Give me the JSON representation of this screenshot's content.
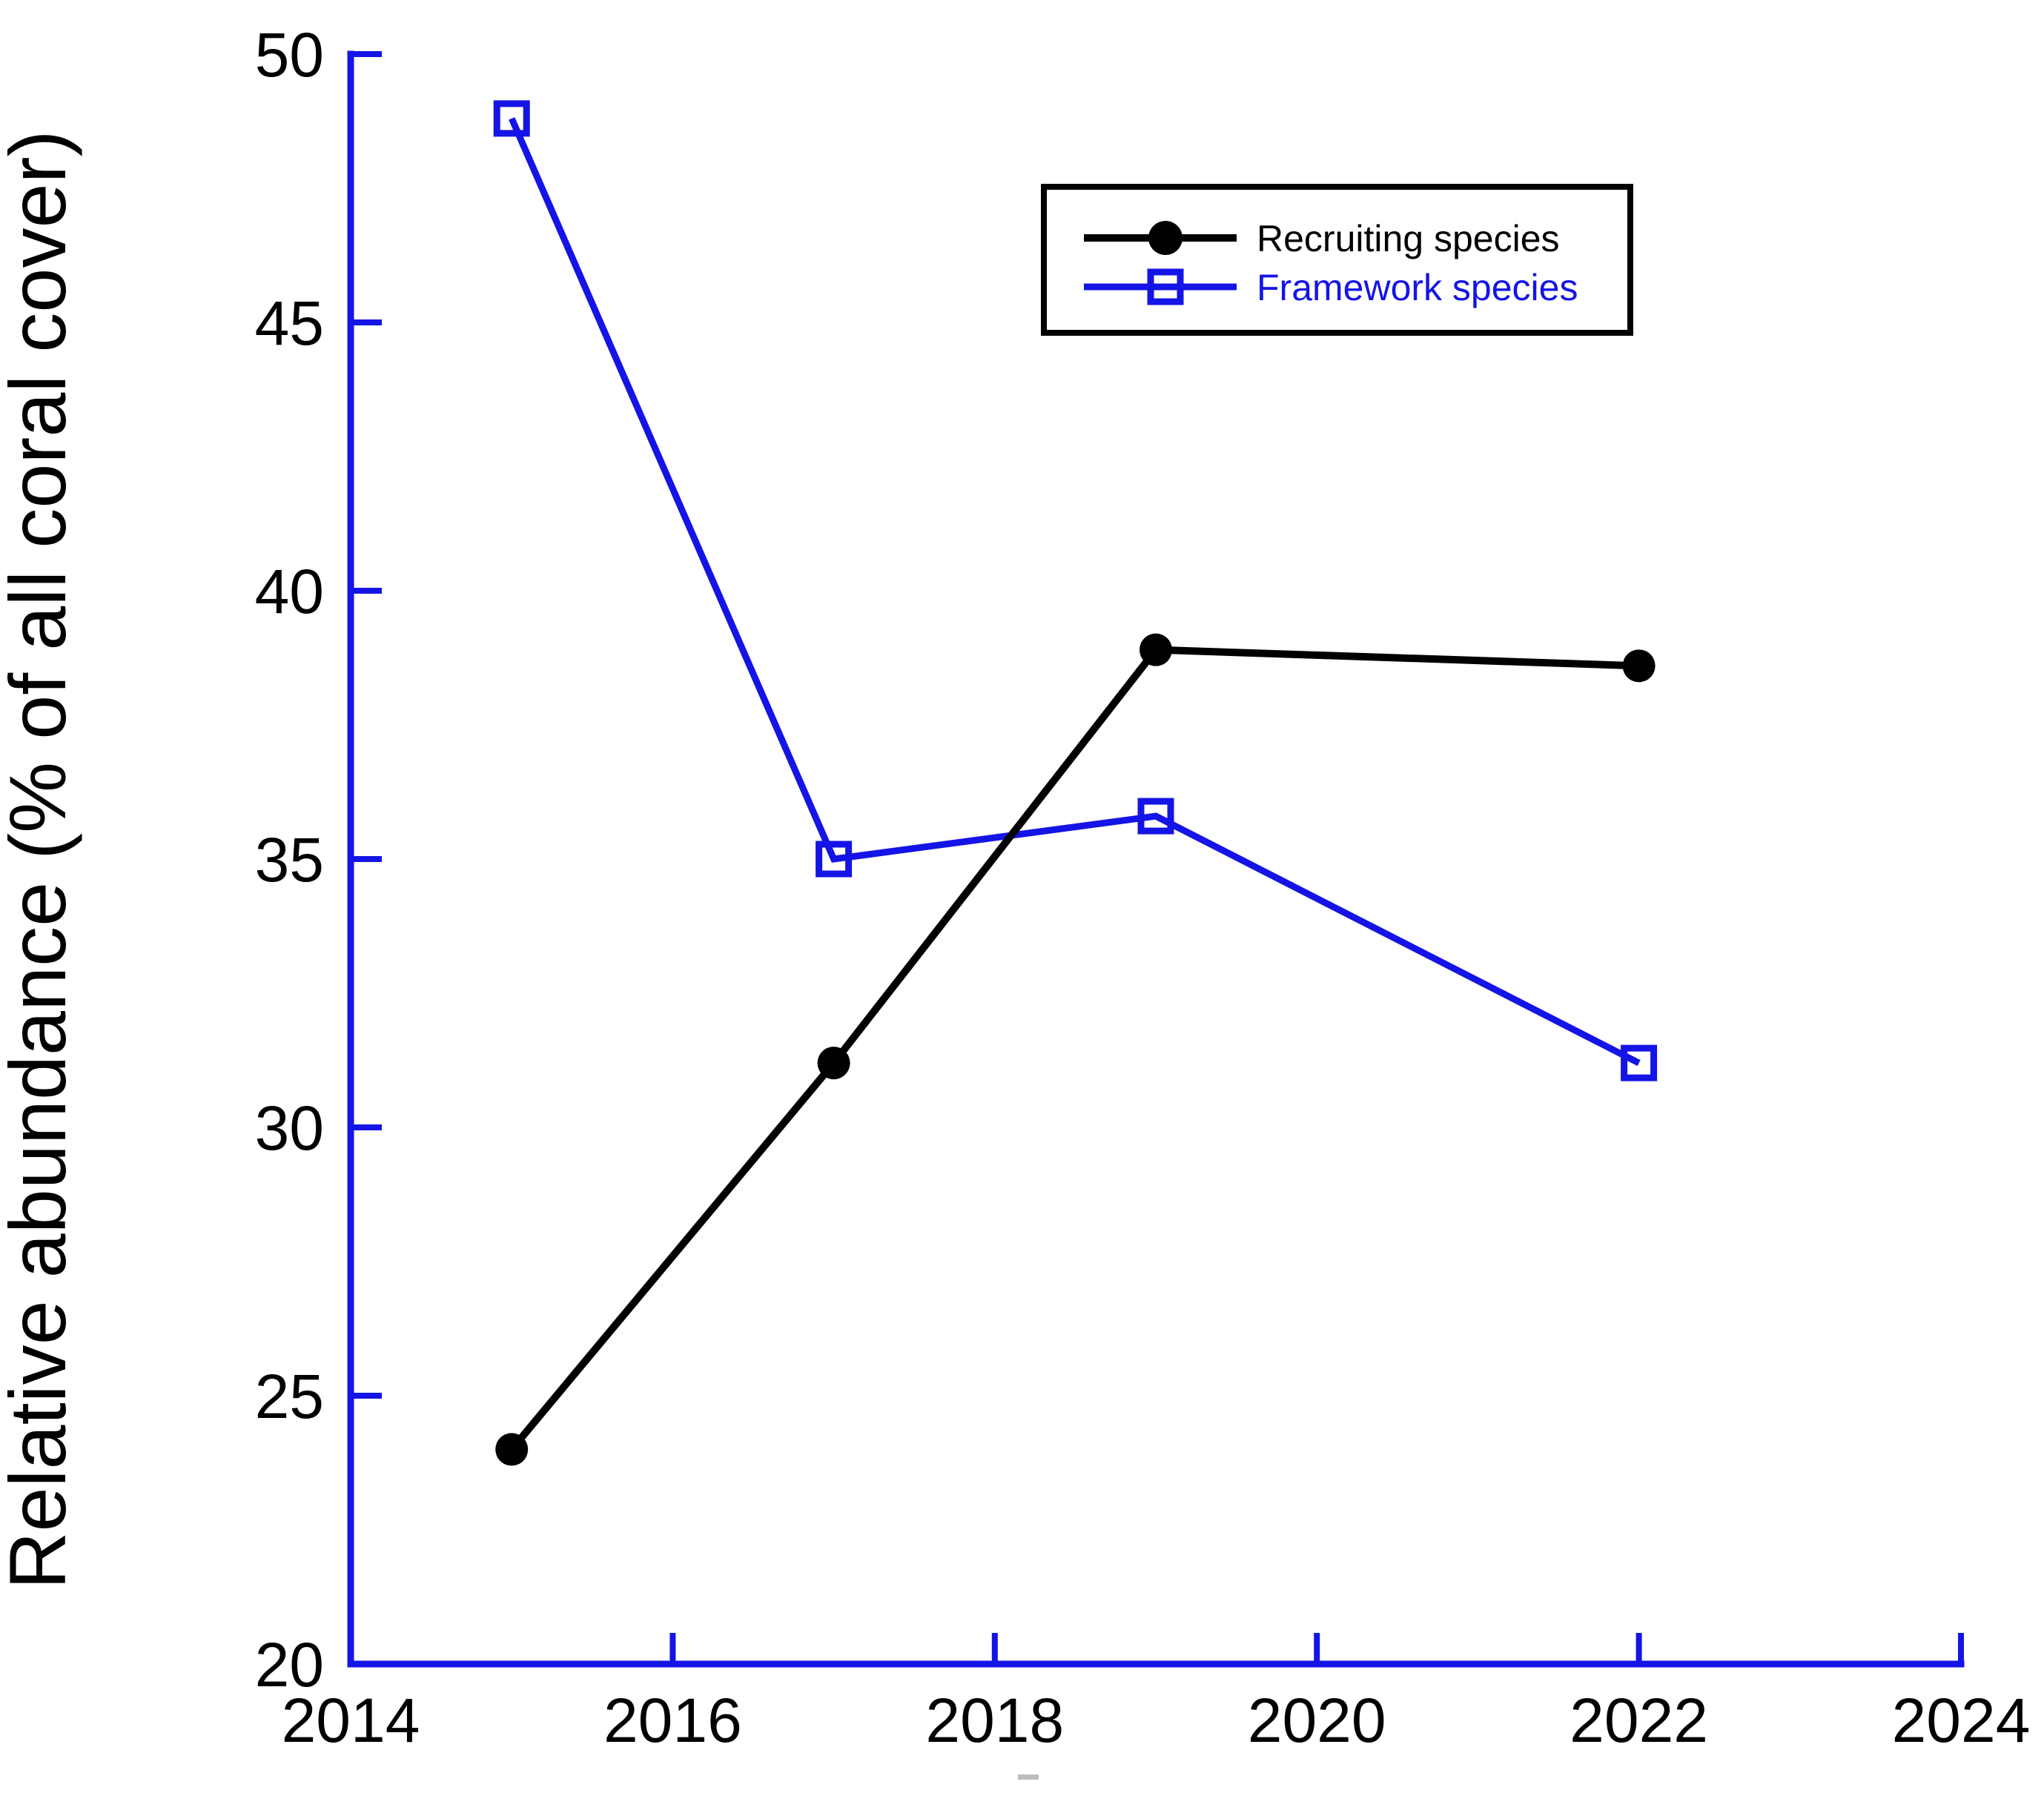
{
  "figure": {
    "background": "#ffffff",
    "kind": "scientific line chart"
  },
  "chart_data": {
    "type": "line",
    "title": "",
    "xlabel": "",
    "ylabel": "Relative abundance (% of all coral cover)",
    "x": [
      2015,
      2017,
      2019,
      2022
    ],
    "series": [
      {
        "name": "Recruiting species",
        "color": "#000000",
        "marker": "filled-circle",
        "values": [
          24.0,
          31.2,
          38.9,
          38.6
        ]
      },
      {
        "name": "Framework species",
        "color": "#1414e6",
        "marker": "open-square",
        "values": [
          48.8,
          35.0,
          35.8,
          31.2
        ]
      }
    ],
    "xlim": [
      2014,
      2024
    ],
    "ylim": [
      20,
      50
    ],
    "x_ticks": [
      2014,
      2016,
      2018,
      2020,
      2022,
      2024
    ],
    "y_ticks": [
      20,
      25,
      30,
      35,
      40,
      45,
      50
    ],
    "axis_color": "#1414e6",
    "tick_label_color": "#000000",
    "grid": false,
    "legend_position": "upper-right-inside",
    "legend_border_color": "#000000"
  }
}
